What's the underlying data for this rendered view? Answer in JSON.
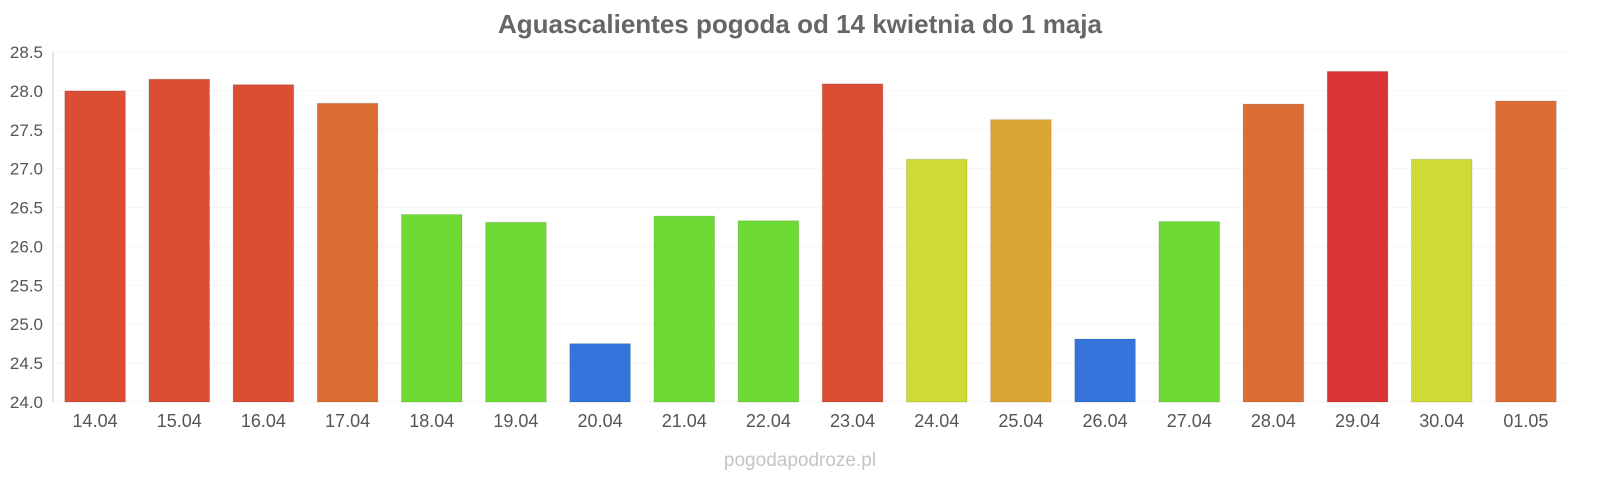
{
  "chart_data": {
    "type": "bar",
    "title": "Aguascalientes pogoda od 14 kwietnia do 1 maja",
    "xlabel": "",
    "ylabel": "",
    "ylim": [
      24.0,
      28.5
    ],
    "yticks": [
      "24.0",
      "24.5",
      "25.0",
      "25.5",
      "26.0",
      "26.5",
      "27.0",
      "27.5",
      "28.0",
      "28.5"
    ],
    "grid": true,
    "categories": [
      "14.04",
      "15.04",
      "16.04",
      "17.04",
      "18.04",
      "19.04",
      "20.04",
      "21.04",
      "22.04",
      "23.04",
      "24.04",
      "25.04",
      "26.04",
      "27.04",
      "28.04",
      "29.04",
      "30.04",
      "01.05"
    ],
    "values": [
      28.0,
      28.15,
      28.08,
      27.84,
      26.41,
      26.31,
      24.75,
      26.39,
      26.33,
      28.09,
      27.12,
      27.63,
      24.81,
      26.32,
      27.83,
      28.25,
      27.12,
      27.87
    ],
    "colors": [
      "#db4e34",
      "#db4e34",
      "#db4e34",
      "#db6e34",
      "#6ddb34",
      "#6ddb34",
      "#3474db",
      "#6ddb34",
      "#6ddb34",
      "#db4e34",
      "#cfdb34",
      "#dba634",
      "#3474db",
      "#6ddb34",
      "#db6e34",
      "#db3434",
      "#cfdb34",
      "#db6e34"
    ]
  },
  "footer": {
    "text": "pogodapodroze.pl"
  }
}
